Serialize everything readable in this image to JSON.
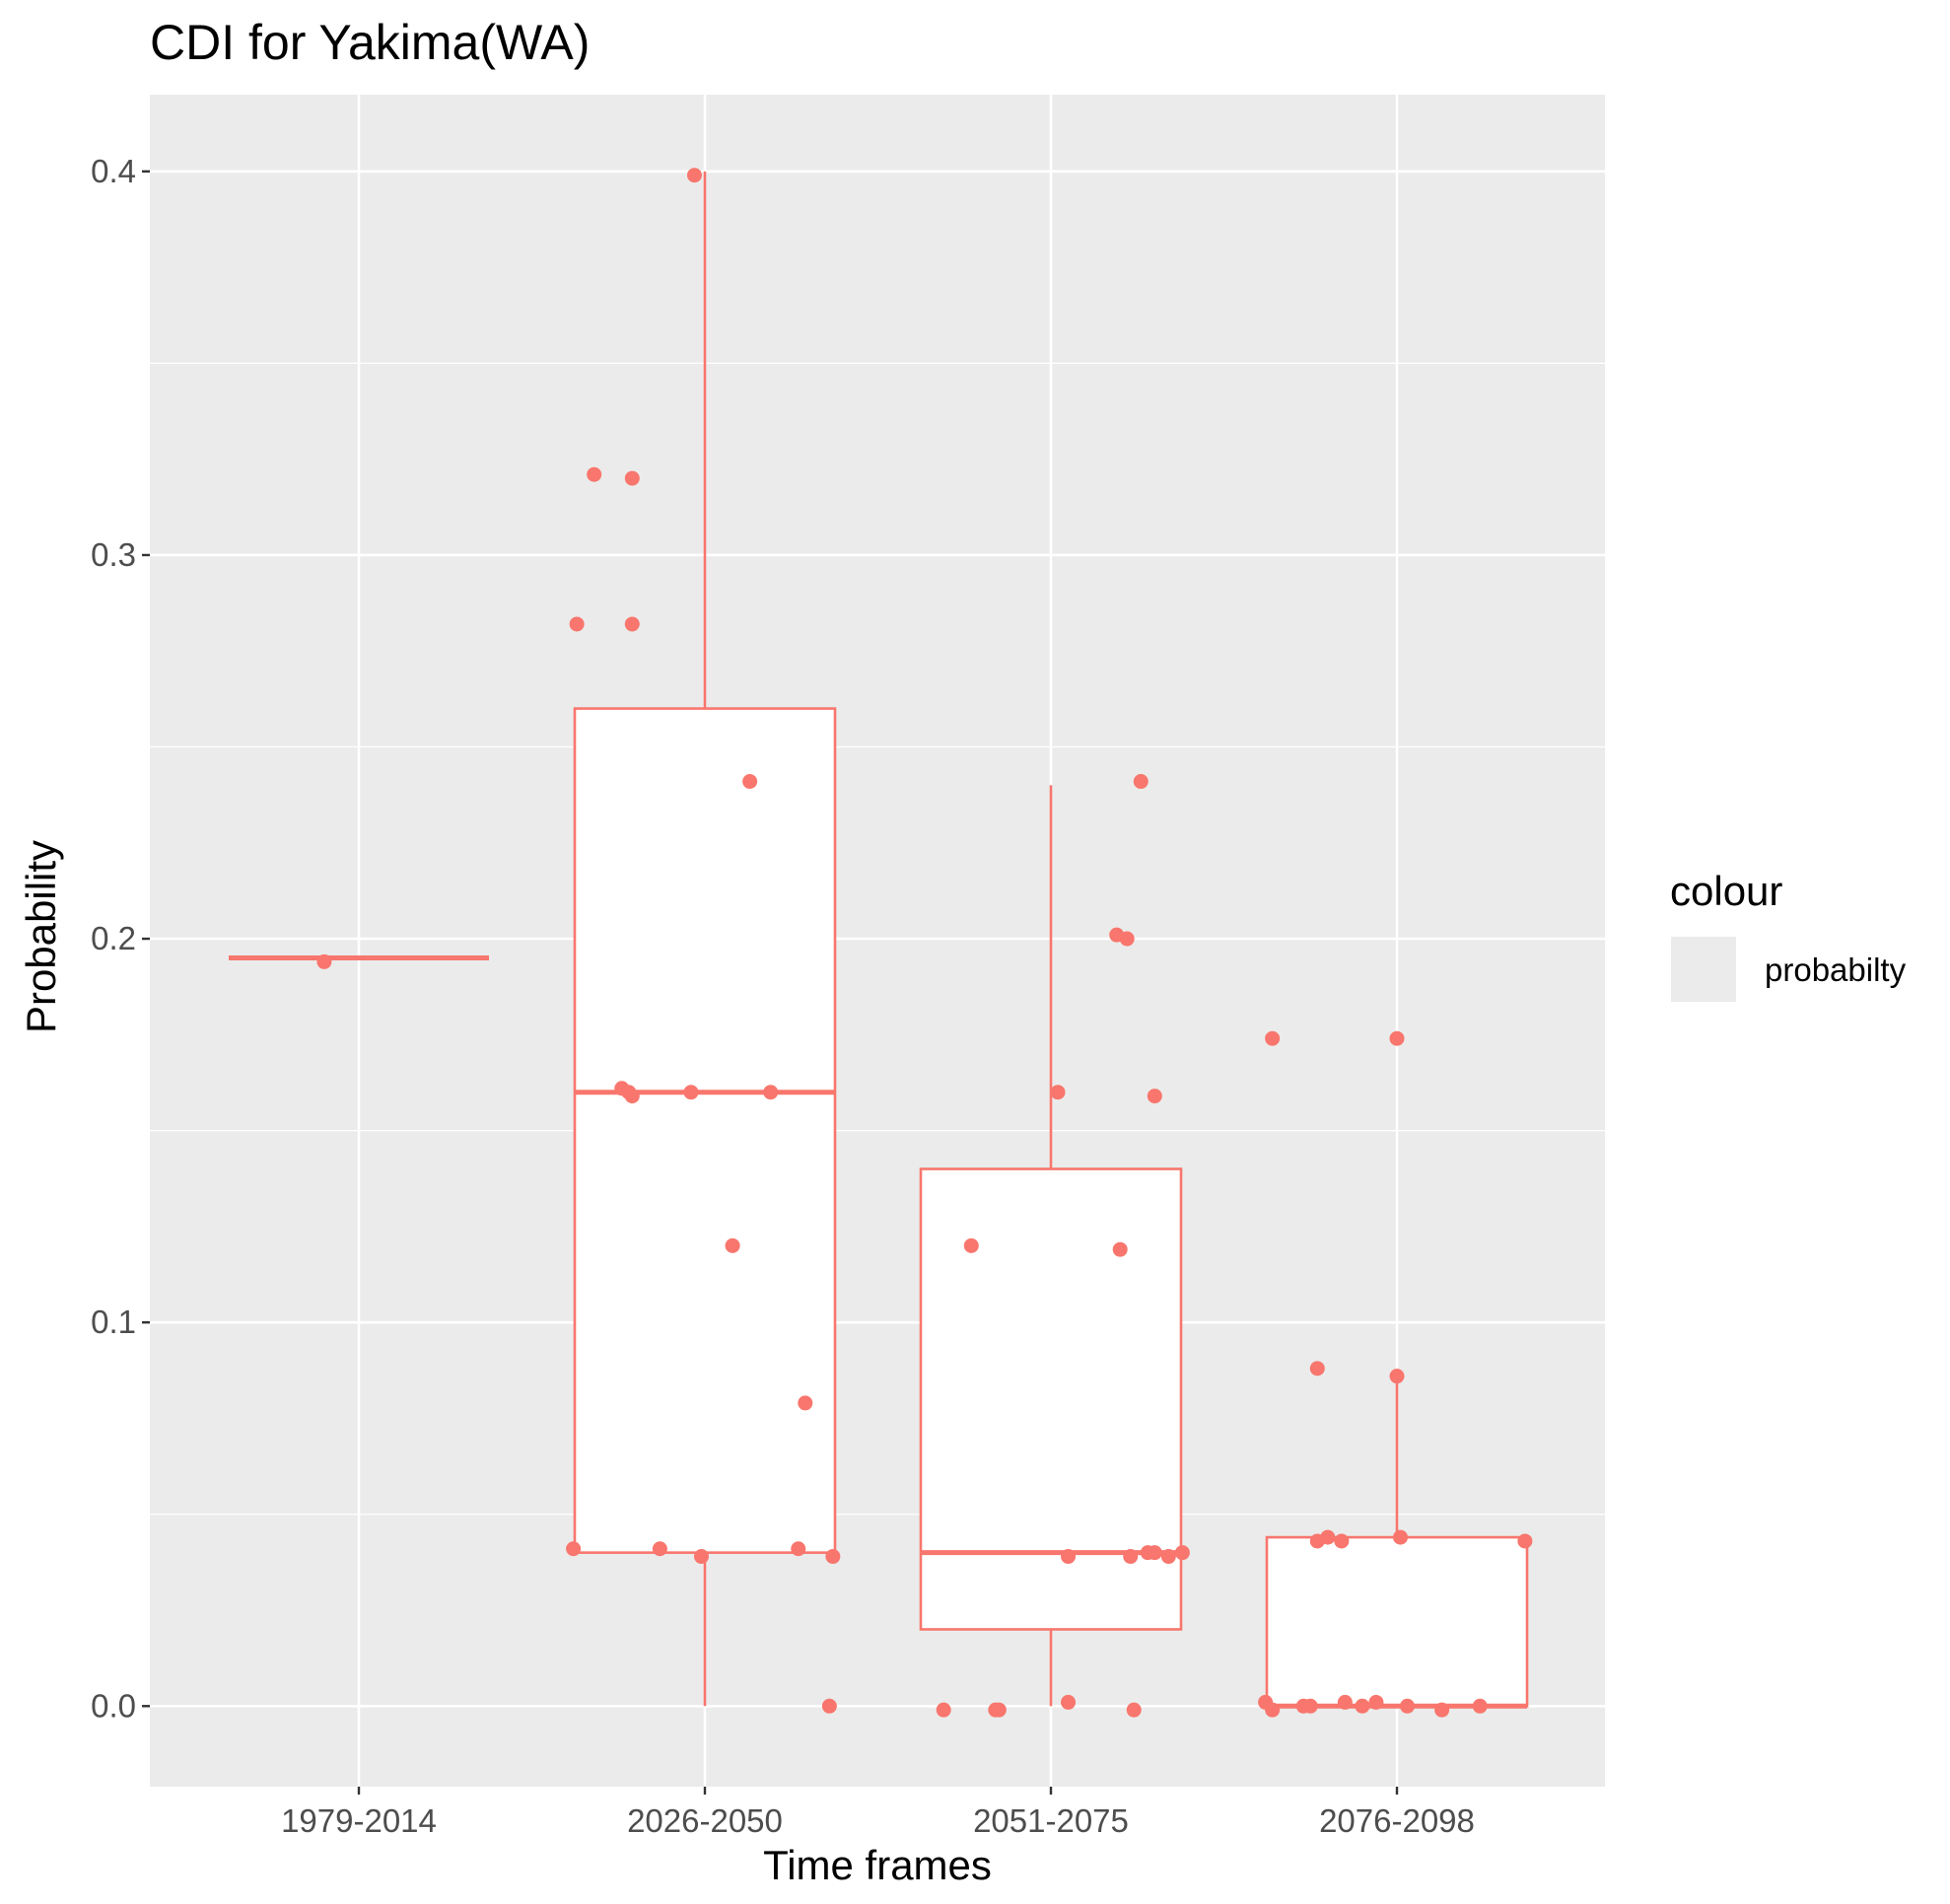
{
  "colors": {
    "panel_bg": "#ebebeb",
    "grid": "#ffffff",
    "series": "#f8766d",
    "tick_text": "#4d4d4d",
    "tick_mark": "#333333"
  },
  "legend": {
    "title": "colour",
    "items": [
      {
        "label": "probabilty",
        "glyph": "boxplot-with-point"
      }
    ],
    "position": "right"
  },
  "chart_data": {
    "type": "boxplot",
    "title": "CDI for Yakima(WA)",
    "xlabel": "Time frames",
    "ylabel": "Probability",
    "categories": [
      "1979-2014",
      "2026-2050",
      "2051-2075",
      "2076-2098"
    ],
    "ylim": [
      -0.021,
      0.42
    ],
    "yticks": [
      0.0,
      0.1,
      0.2,
      0.3,
      0.4
    ],
    "ytick_labels": [
      "0.0",
      "0.1",
      "0.2",
      "0.3",
      "0.4"
    ],
    "grid": true,
    "boxes": [
      {
        "category": "1979-2014",
        "lower_whisker": 0.195,
        "q1": 0.195,
        "median": 0.195,
        "q3": 0.195,
        "upper_whisker": 0.195
      },
      {
        "category": "2026-2050",
        "lower_whisker": 0.0,
        "q1": 0.04,
        "median": 0.16,
        "q3": 0.26,
        "upper_whisker": 0.4
      },
      {
        "category": "2051-2075",
        "lower_whisker": 0.0,
        "q1": 0.02,
        "median": 0.04,
        "q3": 0.14,
        "upper_whisker": 0.24
      },
      {
        "category": "2076-2098",
        "lower_whisker": 0.0,
        "q1": 0.0,
        "median": 0.0,
        "q3": 0.044,
        "upper_whisker": 0.087
      }
    ],
    "series": [
      {
        "name": "probabilty",
        "points": [
          {
            "category": "1979-2014",
            "jitter": -0.1,
            "y": 0.194
          },
          {
            "category": "2026-2050",
            "jitter": -0.03,
            "y": 0.399
          },
          {
            "category": "2026-2050",
            "jitter": -0.32,
            "y": 0.321
          },
          {
            "category": "2026-2050",
            "jitter": -0.21,
            "y": 0.32
          },
          {
            "category": "2026-2050",
            "jitter": -0.37,
            "y": 0.282
          },
          {
            "category": "2026-2050",
            "jitter": -0.21,
            "y": 0.282
          },
          {
            "category": "2026-2050",
            "jitter": 0.13,
            "y": 0.241
          },
          {
            "category": "2026-2050",
            "jitter": -0.24,
            "y": 0.161
          },
          {
            "category": "2026-2050",
            "jitter": -0.22,
            "y": 0.16
          },
          {
            "category": "2026-2050",
            "jitter": -0.21,
            "y": 0.159
          },
          {
            "category": "2026-2050",
            "jitter": -0.04,
            "y": 0.16
          },
          {
            "category": "2026-2050",
            "jitter": 0.19,
            "y": 0.16
          },
          {
            "category": "2026-2050",
            "jitter": 0.08,
            "y": 0.12
          },
          {
            "category": "2026-2050",
            "jitter": 0.29,
            "y": 0.079
          },
          {
            "category": "2026-2050",
            "jitter": -0.38,
            "y": 0.041
          },
          {
            "category": "2026-2050",
            "jitter": -0.13,
            "y": 0.041
          },
          {
            "category": "2026-2050",
            "jitter": -0.01,
            "y": 0.039
          },
          {
            "category": "2026-2050",
            "jitter": 0.27,
            "y": 0.041
          },
          {
            "category": "2026-2050",
            "jitter": 0.37,
            "y": 0.039
          },
          {
            "category": "2026-2050",
            "jitter": 0.36,
            "y": 0.0
          },
          {
            "category": "2051-2075",
            "jitter": 0.26,
            "y": 0.241
          },
          {
            "category": "2051-2075",
            "jitter": 0.19,
            "y": 0.201
          },
          {
            "category": "2051-2075",
            "jitter": 0.22,
            "y": 0.2
          },
          {
            "category": "2051-2075",
            "jitter": 0.02,
            "y": 0.16
          },
          {
            "category": "2051-2075",
            "jitter": 0.3,
            "y": 0.159
          },
          {
            "category": "2051-2075",
            "jitter": -0.23,
            "y": 0.12
          },
          {
            "category": "2051-2075",
            "jitter": 0.2,
            "y": 0.119
          },
          {
            "category": "2051-2075",
            "jitter": 0.05,
            "y": 0.039
          },
          {
            "category": "2051-2075",
            "jitter": 0.23,
            "y": 0.039
          },
          {
            "category": "2051-2075",
            "jitter": 0.28,
            "y": 0.04
          },
          {
            "category": "2051-2075",
            "jitter": 0.3,
            "y": 0.04
          },
          {
            "category": "2051-2075",
            "jitter": 0.34,
            "y": 0.039
          },
          {
            "category": "2051-2075",
            "jitter": 0.38,
            "y": 0.04
          },
          {
            "category": "2051-2075",
            "jitter": -0.31,
            "y": -0.001
          },
          {
            "category": "2051-2075",
            "jitter": -0.16,
            "y": -0.001
          },
          {
            "category": "2051-2075",
            "jitter": -0.15,
            "y": -0.001
          },
          {
            "category": "2051-2075",
            "jitter": 0.05,
            "y": 0.001
          },
          {
            "category": "2051-2075",
            "jitter": 0.24,
            "y": -0.001
          },
          {
            "category": "2076-2098",
            "jitter": -0.36,
            "y": 0.174
          },
          {
            "category": "2076-2098",
            "jitter": 0.0,
            "y": 0.174
          },
          {
            "category": "2076-2098",
            "jitter": -0.23,
            "y": 0.088
          },
          {
            "category": "2076-2098",
            "jitter": 0.0,
            "y": 0.086
          },
          {
            "category": "2076-2098",
            "jitter": -0.23,
            "y": 0.043
          },
          {
            "category": "2076-2098",
            "jitter": -0.2,
            "y": 0.044
          },
          {
            "category": "2076-2098",
            "jitter": -0.16,
            "y": 0.043
          },
          {
            "category": "2076-2098",
            "jitter": 0.01,
            "y": 0.044
          },
          {
            "category": "2076-2098",
            "jitter": 0.37,
            "y": 0.043
          },
          {
            "category": "2076-2098",
            "jitter": -0.38,
            "y": 0.001
          },
          {
            "category": "2076-2098",
            "jitter": -0.36,
            "y": -0.001
          },
          {
            "category": "2076-2098",
            "jitter": -0.27,
            "y": 0.0
          },
          {
            "category": "2076-2098",
            "jitter": -0.25,
            "y": 0.0
          },
          {
            "category": "2076-2098",
            "jitter": -0.15,
            "y": 0.001
          },
          {
            "category": "2076-2098",
            "jitter": -0.1,
            "y": 0.0
          },
          {
            "category": "2076-2098",
            "jitter": -0.06,
            "y": 0.001
          },
          {
            "category": "2076-2098",
            "jitter": 0.03,
            "y": 0.0
          },
          {
            "category": "2076-2098",
            "jitter": 0.13,
            "y": -0.001
          },
          {
            "category": "2076-2098",
            "jitter": 0.24,
            "y": 0.0
          }
        ]
      }
    ]
  }
}
